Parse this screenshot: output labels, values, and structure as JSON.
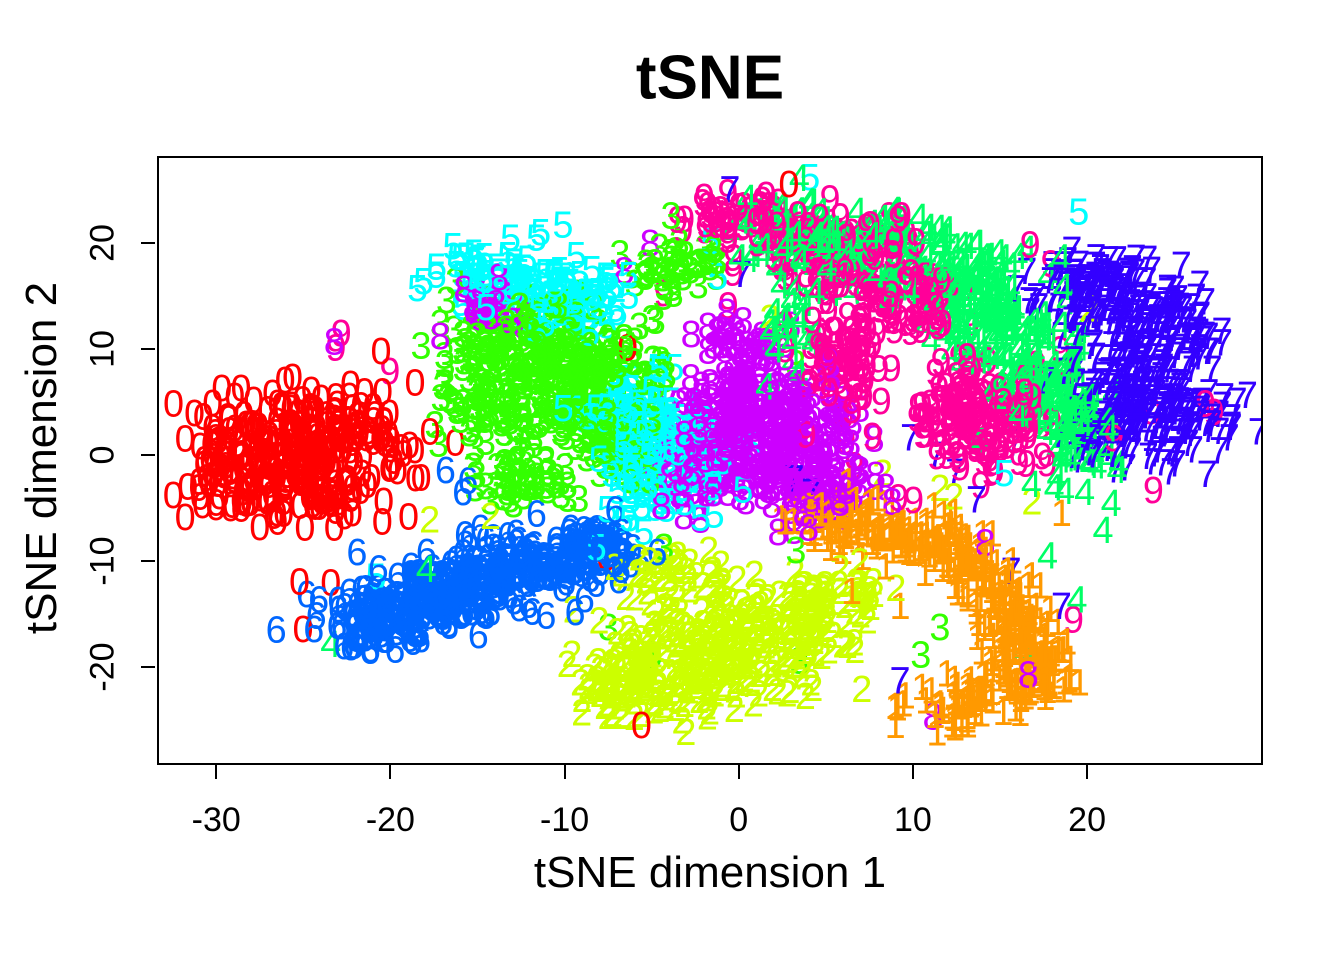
{
  "page": {
    "background": "#FFFFFF"
  },
  "chart_data": {
    "type": "scatter",
    "title": "tSNE",
    "xlabel": "tSNE dimension 1",
    "ylabel": "tSNE dimension 2",
    "xlim": [
      -33.4,
      30.1
    ],
    "ylim": [
      -29.2,
      28.2
    ],
    "x_ticks": [
      -30,
      -20,
      -10,
      0,
      10,
      20
    ],
    "y_ticks": [
      -20,
      -10,
      0,
      10,
      20
    ],
    "grid": false,
    "legend": "none",
    "marker": "each point drawn as its class digit glyph, colored by class",
    "palette": {
      "0": "#FF0000",
      "1": "#FF9900",
      "2": "#CCFF00",
      "3": "#33FF00",
      "4": "#00FF66",
      "5": "#00FFFF",
      "6": "#0066FF",
      "7": "#3300FF",
      "8": "#CC00FF",
      "9": "#FF0099"
    },
    "seed": 20,
    "clusters": [
      {
        "digit": "0",
        "blobs": [
          [
            -24.3,
            1.8,
            2.6,
            2.4,
            190
          ],
          [
            -28.8,
            -0.5,
            1.5,
            2.0,
            70
          ],
          [
            -25.0,
            -4.0,
            2.8,
            1.4,
            70
          ]
        ]
      },
      {
        "digit": "1",
        "blobs": [
          [
            5.3,
            -6.0,
            1.4,
            1.1,
            40
          ],
          [
            7.8,
            -6.8,
            1.4,
            1.1,
            45
          ],
          [
            10.5,
            -7.6,
            1.4,
            1.1,
            45
          ],
          [
            13.0,
            -9.5,
            1.3,
            1.3,
            45
          ],
          [
            14.5,
            -12.5,
            1.2,
            1.6,
            45
          ],
          [
            15.8,
            -15.8,
            1.2,
            1.6,
            45
          ],
          [
            16.6,
            -18.3,
            1.1,
            1.3,
            40
          ],
          [
            17.3,
            -20.6,
            1.2,
            1.2,
            35
          ],
          [
            15.0,
            -22.6,
            1.5,
            1.2,
            40
          ],
          [
            12.4,
            -24.0,
            1.4,
            1.1,
            40
          ]
        ]
      },
      {
        "digit": "2",
        "blobs": [
          [
            -2.6,
            -19.6,
            2.7,
            2.9,
            190
          ],
          [
            1.5,
            -17.0,
            2.0,
            2.2,
            80
          ],
          [
            5.0,
            -15.0,
            1.8,
            2.2,
            80
          ],
          [
            -3.2,
            -11.5,
            1.9,
            1.4,
            45
          ],
          [
            -6.8,
            -21.5,
            1.3,
            1.8,
            60
          ]
        ]
      },
      {
        "digit": "3",
        "blobs": [
          [
            -12.5,
            11.2,
            2.2,
            2.2,
            130
          ],
          [
            -8.6,
            8.0,
            2.2,
            2.4,
            130
          ],
          [
            -13.6,
            4.6,
            2.0,
            2.2,
            90
          ],
          [
            -7.6,
            1.6,
            1.8,
            2.0,
            70
          ],
          [
            -12.6,
            -2.4,
            1.6,
            1.2,
            45
          ],
          [
            -3.6,
            17.8,
            1.7,
            1.4,
            45
          ]
        ]
      },
      {
        "digit": "4",
        "blobs": [
          [
            3.0,
            21.5,
            2.0,
            1.5,
            60
          ],
          [
            8.0,
            19.5,
            2.4,
            1.9,
            100
          ],
          [
            13.0,
            15.5,
            2.4,
            2.4,
            120
          ],
          [
            15.5,
            10.0,
            2.0,
            2.4,
            90
          ],
          [
            17.6,
            5.5,
            1.5,
            2.0,
            60
          ],
          [
            19.6,
            1.0,
            1.2,
            2.4,
            50
          ],
          [
            3.0,
            12.0,
            0.9,
            2.2,
            25
          ]
        ]
      },
      {
        "digit": "5",
        "blobs": [
          [
            -13.5,
            17.5,
            1.9,
            1.6,
            70
          ],
          [
            -9.6,
            14.6,
            1.9,
            1.6,
            70
          ],
          [
            -4.6,
            0.0,
            1.8,
            3.1,
            150
          ],
          [
            -6.6,
            4.6,
            1.5,
            1.9,
            50
          ]
        ]
      },
      {
        "digit": "6",
        "blobs": [
          [
            -21.0,
            -15.5,
            1.8,
            1.5,
            70
          ],
          [
            -17.5,
            -13.5,
            2.0,
            1.7,
            105
          ],
          [
            -13.6,
            -11.6,
            2.0,
            1.7,
            105
          ],
          [
            -10.0,
            -9.6,
            1.7,
            1.4,
            70
          ],
          [
            -7.6,
            -8.4,
            1.0,
            1.0,
            40
          ]
        ]
      },
      {
        "digit": "7",
        "blobs": [
          [
            20.5,
            16.0,
            2.0,
            1.8,
            110
          ],
          [
            24.0,
            12.5,
            2.0,
            2.0,
            115
          ],
          [
            23.0,
            7.0,
            2.2,
            2.0,
            110
          ],
          [
            25.5,
            3.5,
            1.8,
            1.8,
            80
          ],
          [
            21.2,
            1.4,
            1.5,
            1.5,
            60
          ]
        ]
      },
      {
        "digit": "8",
        "blobs": [
          [
            0.5,
            5.0,
            2.0,
            2.2,
            115
          ],
          [
            2.5,
            1.0,
            2.2,
            2.4,
            135
          ],
          [
            -1.4,
            -1.0,
            1.8,
            2.0,
            80
          ],
          [
            4.6,
            -3.4,
            1.5,
            1.5,
            50
          ],
          [
            0.0,
            11.0,
            1.3,
            1.1,
            30
          ],
          [
            -14.8,
            14.0,
            1.2,
            1.3,
            25
          ]
        ]
      },
      {
        "digit": "9",
        "blobs": [
          [
            5.5,
            19.6,
            2.4,
            1.9,
            110
          ],
          [
            9.5,
            15.0,
            1.8,
            2.0,
            70
          ],
          [
            13.6,
            3.6,
            2.4,
            2.9,
            160
          ],
          [
            0.0,
            23.0,
            1.6,
            1.2,
            40
          ],
          [
            5.8,
            9.0,
            1.3,
            3.0,
            70
          ]
        ]
      }
    ],
    "outliers": [
      [
        "0",
        2.9,
        25.7
      ],
      [
        "0",
        -6.4,
        10.2
      ],
      [
        "0",
        -20.6,
        9.9
      ],
      [
        "0",
        -25.3,
        -12.0
      ],
      [
        "0",
        -25.1,
        -16.5
      ],
      [
        "0",
        -23.5,
        -12.1
      ],
      [
        "0",
        -5.6,
        -25.6
      ],
      [
        "0",
        -7.6,
        -9.7
      ],
      [
        "1",
        9.3,
        -14.3
      ],
      [
        "1",
        6.5,
        -12.9
      ],
      [
        "1",
        5.3,
        -8.8
      ],
      [
        "1",
        18.6,
        -5.5
      ],
      [
        "1",
        12.6,
        -21.8
      ],
      [
        "1",
        13.2,
        -21.9
      ],
      [
        "2",
        -17.8,
        -6.1
      ],
      [
        "2",
        -14.3,
        -5.8
      ],
      [
        "2",
        5.4,
        7.7
      ],
      [
        "2",
        8.3,
        -1.7
      ],
      [
        "2",
        11.6,
        -3.1
      ],
      [
        "2",
        12.4,
        -3.9
      ],
      [
        "2",
        21.9,
        3.3
      ],
      [
        "2",
        20.2,
        13.9
      ],
      [
        "2",
        16.9,
        -4.4
      ],
      [
        "2",
        6.7,
        -18.5
      ],
      [
        "2",
        1.8,
        13.0
      ],
      [
        "3",
        -7.5,
        -16.3
      ],
      [
        "3",
        -5.0,
        -18.9
      ],
      [
        "3",
        3.5,
        -19.5
      ],
      [
        "3",
        10.5,
        -18.9
      ],
      [
        "3",
        3.3,
        -9.0
      ],
      [
        "3",
        -18.3,
        10.4
      ],
      [
        "3",
        -2.4,
        18.2
      ],
      [
        "3",
        -3.9,
        18.6
      ],
      [
        "3",
        11.6,
        -16.3
      ],
      [
        "3",
        -4.3,
        -8.7
      ],
      [
        "3",
        3.3,
        8.7
      ],
      [
        "4",
        0.5,
        24.4
      ],
      [
        "4",
        -23.5,
        -17.9
      ],
      [
        "4",
        -18.0,
        -10.8
      ],
      [
        "4",
        21.0,
        -7.1
      ],
      [
        "4",
        17.8,
        -9.5
      ],
      [
        "4",
        19.5,
        -13.7
      ],
      [
        "4",
        21.9,
        -0.8
      ],
      [
        "4",
        16.4,
        -18.6
      ],
      [
        "5",
        4.1,
        26.4
      ],
      [
        "5",
        -1.6,
        20.3
      ],
      [
        "5",
        -1.2,
        17.0
      ],
      [
        "5",
        -20.9,
        -11.5
      ],
      [
        "5",
        -8.2,
        -8.7
      ],
      [
        "5",
        15.3,
        -1.7
      ],
      [
        "5",
        19.6,
        23.1
      ],
      [
        "6",
        -22.0,
        -9.2
      ],
      [
        "6",
        -18.0,
        -9.2
      ],
      [
        "6",
        -14.9,
        -6.9
      ],
      [
        "6",
        -24.9,
        -13.2
      ],
      [
        "6",
        -24.2,
        -13.7
      ],
      [
        "6",
        -15.9,
        -3.5
      ],
      [
        "6",
        -16.9,
        -1.4
      ],
      [
        "6",
        -15.6,
        -2.4
      ],
      [
        "6",
        -4.7,
        -9.2
      ],
      [
        "7",
        -0.5,
        25.2
      ],
      [
        "7",
        0.2,
        17.2
      ],
      [
        "7",
        3.2,
        -2.2
      ],
      [
        "7",
        4.2,
        -3.5
      ],
      [
        "7",
        9.9,
        1.7
      ],
      [
        "7",
        11.4,
        0.0
      ],
      [
        "7",
        12.5,
        -1.6
      ],
      [
        "7",
        13.7,
        -4.2
      ],
      [
        "7",
        15.7,
        -11.0
      ],
      [
        "7",
        18.6,
        -14.3
      ],
      [
        "7",
        9.3,
        -21.4
      ],
      [
        "7",
        27.0,
        -1.8
      ],
      [
        "8",
        -23.3,
        10.8
      ],
      [
        "8",
        -15.2,
        15.5
      ],
      [
        "8",
        -17.2,
        11.3
      ],
      [
        "8",
        -5.1,
        20.1
      ],
      [
        "8",
        -6.6,
        17.5
      ],
      [
        "8",
        -2.2,
        -6.1
      ],
      [
        "8",
        7.0,
        -1.4
      ],
      [
        "8",
        7.9,
        -1.9
      ],
      [
        "8",
        14.2,
        -8.3
      ],
      [
        "8",
        11.2,
        -24.8
      ],
      [
        "8",
        16.7,
        -20.8
      ],
      [
        "8",
        9.0,
        17.6
      ],
      [
        "9",
        -3.1,
        22.4
      ],
      [
        "9",
        -1.6,
        22.4
      ],
      [
        "9",
        -4.3,
        15.4
      ],
      [
        "9",
        -22.9,
        11.6
      ],
      [
        "9",
        -20.1,
        8.0
      ],
      [
        "9",
        -23.2,
        10.2
      ],
      [
        "9",
        18.0,
        18.2
      ],
      [
        "9",
        16.8,
        20.0
      ],
      [
        "9",
        19.3,
        -15.6
      ],
      [
        "9",
        23.8,
        4.2
      ],
      [
        "9",
        26.9,
        4.9
      ],
      [
        "9",
        -0.6,
        14.2
      ],
      [
        "9",
        27.4,
        4.1
      ],
      [
        "9",
        23.9,
        -3.3
      ],
      [
        "9",
        -0.3,
        17.3
      ]
    ]
  }
}
